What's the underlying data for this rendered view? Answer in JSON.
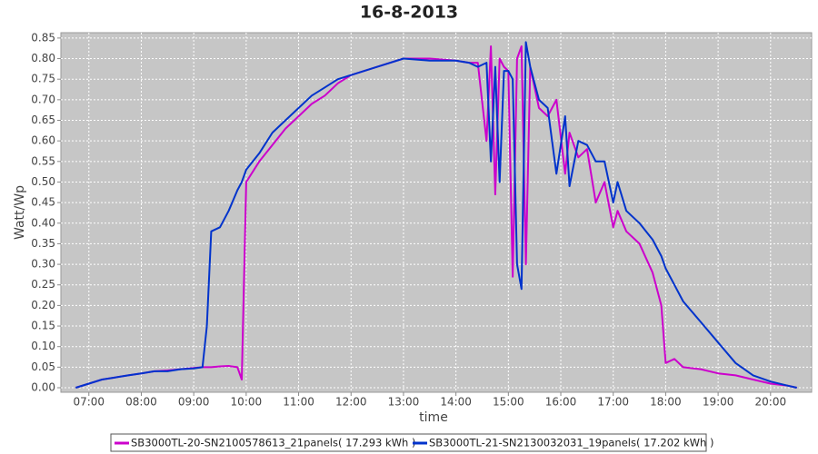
{
  "chart_data": {
    "type": "line",
    "title": "16-8-2013",
    "x_label": "time",
    "y_label": "Watt/Wp",
    "x": [
      "06:45",
      "07:00",
      "07:15",
      "07:30",
      "07:45",
      "08:00",
      "08:15",
      "08:30",
      "08:45",
      "09:00",
      "09:10",
      "09:15",
      "09:20",
      "09:30",
      "09:40",
      "09:50",
      "09:55",
      "10:00",
      "10:15",
      "10:30",
      "10:45",
      "11:00",
      "11:15",
      "11:30",
      "11:45",
      "12:00",
      "12:30",
      "13:00",
      "13:30",
      "14:00",
      "14:15",
      "14:25",
      "14:35",
      "14:40",
      "14:45",
      "14:50",
      "14:55",
      "15:00",
      "15:05",
      "15:10",
      "15:15",
      "15:20",
      "15:25",
      "15:35",
      "15:45",
      "15:55",
      "16:05",
      "16:10",
      "16:20",
      "16:30",
      "16:40",
      "16:50",
      "17:00",
      "17:05",
      "17:15",
      "17:30",
      "17:45",
      "17:55",
      "18:00",
      "18:10",
      "18:20",
      "18:40",
      "19:00",
      "19:20",
      "19:40",
      "20:00",
      "20:20",
      "20:30"
    ],
    "series": [
      {
        "name": "SB3000TL-20-SN2100578613_21panels( 17.293 kWh )",
        "color": "#cc00cc",
        "values": [
          0.0,
          0.01,
          0.02,
          0.025,
          0.03,
          0.035,
          0.04,
          0.042,
          0.045,
          0.048,
          0.05,
          0.05,
          0.05,
          0.052,
          0.053,
          0.05,
          0.02,
          0.5,
          0.55,
          0.59,
          0.63,
          0.66,
          0.69,
          0.71,
          0.74,
          0.76,
          0.78,
          0.8,
          0.8,
          0.795,
          0.79,
          0.79,
          0.6,
          0.83,
          0.47,
          0.8,
          0.78,
          0.77,
          0.27,
          0.8,
          0.83,
          0.3,
          0.78,
          0.68,
          0.66,
          0.7,
          0.52,
          0.62,
          0.56,
          0.58,
          0.45,
          0.5,
          0.39,
          0.43,
          0.38,
          0.35,
          0.28,
          0.2,
          0.06,
          0.07,
          0.05,
          0.045,
          0.035,
          0.03,
          0.02,
          0.01,
          0.005,
          0.0
        ]
      },
      {
        "name": "SB3000TL-21-SN2130032031_19panels( 17.202 kWh )",
        "color": "#0033cc",
        "values": [
          0.0,
          0.01,
          0.02,
          0.025,
          0.03,
          0.035,
          0.04,
          0.04,
          0.045,
          0.047,
          0.05,
          0.15,
          0.38,
          0.39,
          0.43,
          0.48,
          0.5,
          0.53,
          0.57,
          0.62,
          0.65,
          0.68,
          0.71,
          0.73,
          0.75,
          0.76,
          0.78,
          0.8,
          0.795,
          0.795,
          0.79,
          0.78,
          0.79,
          0.55,
          0.78,
          0.5,
          0.77,
          0.77,
          0.75,
          0.3,
          0.24,
          0.84,
          0.78,
          0.7,
          0.68,
          0.52,
          0.66,
          0.49,
          0.6,
          0.59,
          0.55,
          0.55,
          0.45,
          0.5,
          0.43,
          0.4,
          0.36,
          0.32,
          0.29,
          0.25,
          0.21,
          0.16,
          0.11,
          0.06,
          0.03,
          0.015,
          0.005,
          0.0
        ]
      }
    ],
    "xlim": [
      "06:28",
      "20:47"
    ],
    "xticks": [
      "07:00",
      "08:00",
      "09:00",
      "10:00",
      "11:00",
      "12:00",
      "13:00",
      "14:00",
      "15:00",
      "16:00",
      "17:00",
      "18:00",
      "19:00",
      "20:00"
    ],
    "ylim": [
      -0.011,
      0.863
    ],
    "yticks": [
      {
        "value": 0,
        "label": "0.00"
      },
      0.05,
      {
        "value": 0.1,
        "label": "0.10"
      },
      0.15,
      {
        "value": 0.2,
        "label": "0.20"
      },
      0.25,
      {
        "value": 0.3,
        "label": "0.30"
      },
      0.35,
      {
        "value": 0.4,
        "label": "0.40"
      },
      0.45,
      {
        "value": 0.5,
        "label": "0.50"
      },
      0.55,
      {
        "value": 0.6,
        "label": "0.60"
      },
      0.65,
      {
        "value": 0.7,
        "label": "0.70"
      },
      0.75,
      {
        "value": 0.8,
        "label": "0.80"
      },
      0.85
    ],
    "grid": true,
    "legend": "bottom"
  }
}
